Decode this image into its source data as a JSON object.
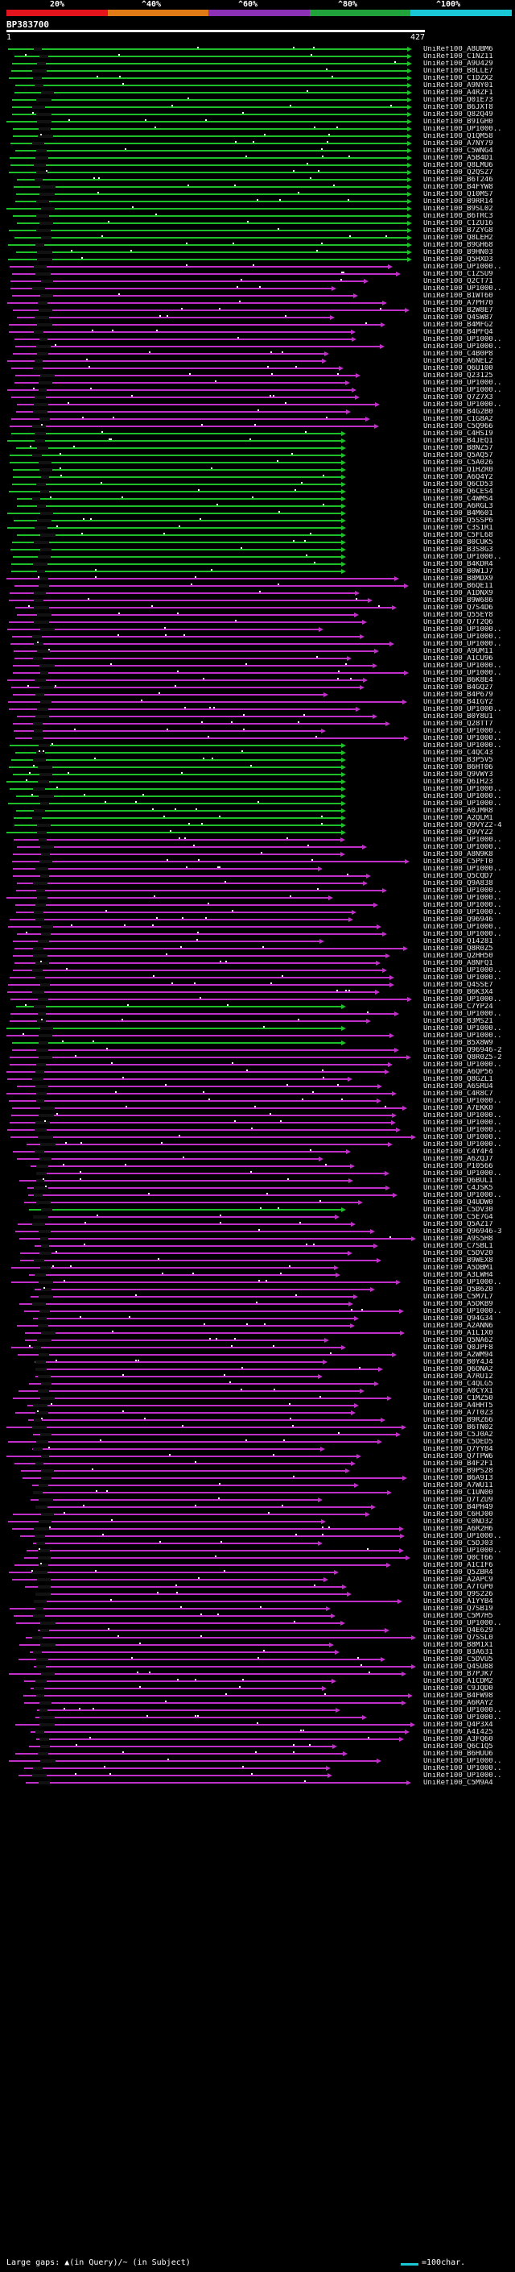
{
  "identity_scale": {
    "labels": [
      "20%",
      "^40%",
      "^60%",
      "^80%",
      "^100%"
    ],
    "colors": [
      "#e3141b",
      "#e07a16",
      "#8c30b6",
      "#22a23b",
      "#19c7d6"
    ]
  },
  "query": {
    "id": "BP383700",
    "start_label": "1",
    "end_label": "427"
  },
  "footer": {
    "gaps_text": "Large gaps: ▲(in Query)/~ (in Subject)",
    "legend_text": "=100char.",
    "legend_color": "#19c7d6"
  },
  "colors": {
    "green": "#1fbf2a",
    "magenta": "#c030c8",
    "dark": "#111111",
    "label": "#e8e8e8"
  },
  "hits": [
    "UniRef100_A8UBM6",
    "UniRef100_C1NZ11",
    "UniRef100_A9U429",
    "UniRef100_B8LLE7",
    "UniRef100_C1DZX2",
    "UniRef100_A9NY01",
    "UniRef100_A4RZF1",
    "UniRef100_Q01E73",
    "UniRef100_B6JXT8",
    "UniRef100_Q82Q49",
    "UniRef100_B9IGH0",
    "UniRef100_UP1000..",
    "UniRef100_Q1QM58",
    "UniRef100_A7NY79",
    "UniRef100_C5WNG4",
    "UniRef100_A5B4D1",
    "UniRef100_Q8LMU6",
    "UniRef100_Q2QSZ7",
    "UniRef100_B6T246",
    "UniRef100_B4FYW8",
    "UniRef100_Q10MS7",
    "UniRef100_B9RR14",
    "UniRef100_B9SL02",
    "UniRef100_B6TRC3",
    "UniRef100_C1ZU16",
    "UniRef100_B7ZYG8",
    "UniRef100_Q8LEH2",
    "UniRef100_B9GH68",
    "UniRef100_B9HN03",
    "UniRef100_Q5HXD3",
    "UniRef100_UP1000..",
    "UniRef100_C1ZSU9",
    "UniRef100_Q2CT71",
    "UniRef100_UP1000..",
    "UniRef100_B1WT60",
    "UniRef100_A7PH70",
    "UniRef100_B2W8E7",
    "UniRef100_Q4SW87",
    "UniRef100_B4MFG2",
    "UniRef100_B4PFQ4",
    "UniRef100_UP1000..",
    "UniRef100_UP1000..",
    "UniRef100_C4B0P8",
    "UniRef100_A6NEL2",
    "UniRef100_Q6U100",
    "UniRef100_Q23125",
    "UniRef100_UP1000..",
    "UniRef100_UP1000..",
    "UniRef100_Q7Z7X3",
    "UniRef100_UP1000..",
    "UniRef100_B4G2B0",
    "UniRef100_C1G8A2",
    "UniRef100_C5Q966",
    "UniRef100_C4HSI9",
    "UniRef100_B4JEQ1",
    "UniRef100_B8NZ57",
    "UniRef100_Q5AQ57",
    "UniRef100_C5A026",
    "UniRef100_Q1HZR0",
    "UniRef100_A6Q4Y2",
    "UniRef100_Q6CD53",
    "UniRef100_Q6CES4",
    "UniRef100_C4WMS4",
    "UniRef100_A6RGL3",
    "UniRef100_B4M601",
    "UniRef100_Q5SSP6",
    "UniRef100_C3S1R1",
    "UniRef100_C5FL68",
    "UniRef100_B0CUK5",
    "UniRef100_B3S8G3",
    "UniRef100_UP1000..",
    "UniRef100_B4KDR4",
    "UniRef100_B0W1J7",
    "UniRef100_B8MDX9",
    "UniRef100_B6QE11",
    "UniRef100_A1DNX9",
    "UniRef100_B9W686",
    "UniRef100_Q7S4D6",
    "UniRef100_Q55EY8",
    "UniRef100_Q7T2Q6",
    "UniRef100_UP1000..",
    "UniRef100_UP1000..",
    "UniRef100_UP1000..",
    "UniRef100_A9UM11",
    "UniRef100_A1CU96",
    "UniRef100_UP1000..",
    "UniRef100_UP1000..",
    "UniRef100_B6K8E4",
    "UniRef100_B4GQ27",
    "UniRef100_B4P679",
    "UniRef100_B4IGY2",
    "UniRef100_UP1000..",
    "UniRef100_B0Y8U1",
    "UniRef100_Q28TT7",
    "UniRef100_UP1000..",
    "UniRef100_UP1000..",
    "UniRef100_UP1000..",
    "UniRef100_C4QC43",
    "UniRef100_B3P5V5",
    "UniRef100_B6HT06",
    "UniRef100_Q9VWY3",
    "UniRef100_Q6IH23",
    "UniRef100_UP1000..",
    "UniRef100_UP1000..",
    "UniRef100_UP1000..",
    "UniRef100_A0JMR8",
    "UniRef100_A2QLM1",
    "UniRef100_Q9VYZ2-4",
    "UniRef100_Q9VYZ2",
    "UniRef100_UP1000..",
    "UniRef100_UP1000..",
    "UniRef100_A8N9K8",
    "UniRef100_C5PFT0",
    "UniRef100_UP1000..",
    "UniRef100_Q5CQD7",
    "UniRef100_Q9A838",
    "UniRef100_UP1000..",
    "UniRef100_UP1000..",
    "UniRef100_UP1000..",
    "UniRef100_UP1000..",
    "UniRef100_Q96946",
    "UniRef100_UP1000..",
    "UniRef100_UP1000..",
    "UniRef100_Q14281",
    "UniRef100_Q8R0Z5",
    "UniRef100_Q2HH50",
    "UniRef100_A8NFQ1",
    "UniRef100_UP1000..",
    "UniRef100_UP1000..",
    "UniRef100_Q4SSE7",
    "UniRef100_B6K3X4",
    "UniRef100_UP1000..",
    "UniRef100_C7YP24",
    "UniRef100_UP1000..",
    "UniRef100_B3MS21",
    "UniRef100_UP1000..",
    "UniRef100_UP1000..",
    "UniRef100_B5X8W9",
    "UniRef100_Q96946-2",
    "UniRef100_Q8R0Z5-2",
    "UniRef100_UP1000..",
    "UniRef100_A6QP56",
    "UniRef100_Q8GZL1",
    "UniRef100_A6SRU4",
    "UniRef100_C4R8C7",
    "UniRef100_UP1000..",
    "UniRef100_A7EKK0",
    "UniRef100_UP1000..",
    "UniRef100_UP1000..",
    "UniRef100_UP1000..",
    "UniRef100_UP1000..",
    "UniRef100_UP1000..",
    "UniRef100_C4Y4F4",
    "UniRef100_A6ZQJ7",
    "UniRef100_P10566",
    "UniRef100_UP1000..",
    "UniRef100_Q6BUL1",
    "UniRef100_C4JSK5",
    "UniRef100_UP1000..",
    "UniRef100_Q4UDW0",
    "UniRef100_C5DV30",
    "UniRef100_C5E7G4",
    "UniRef100_Q5AZ17",
    "UniRef100_Q96946-3",
    "UniRef100_A9S5H8",
    "UniRef100_C7SBL1",
    "UniRef100_C5DV20",
    "UniRef100_B9WEX8",
    "UniRef100_A5DBM1",
    "UniRef100_A3LWH4",
    "UniRef100_UP1000..",
    "UniRef100_Q5B6Z0",
    "UniRef100_C5M7L7",
    "UniRef100_A5DKB9",
    "UniRef100_UP1000..",
    "UniRef100_Q94G34",
    "UniRef100_A2ANN6",
    "UniRef100_A1L1X0",
    "UniRef100_Q5NA62",
    "UniRef100_Q0JPF8",
    "UniRef100_A2WM94",
    "UniRef100_B0Y4J4",
    "UniRef100_Q6ONA2",
    "UniRef100_A7RU12",
    "UniRef100_C4QLG5",
    "UniRef100_A0CYX1",
    "UniRef100_C1MZ50",
    "UniRef100_A4HHT5",
    "UniRef100_A7T0Z3",
    "UniRef100_B9RZ66",
    "UniRef100_B6TN02",
    "UniRef100_C5J0A2",
    "UniRef100_C5DED5",
    "UniRef100_Q7YY84",
    "UniRef100_Q7TPW6",
    "UniRef100_B4F2F1",
    "UniRef100_B9PS28",
    "UniRef100_B6A9I3",
    "UniRef100_A7WU11",
    "UniRef100_C1UN00",
    "UniRef100_Q7TZU9",
    "UniRef100_B4PH49",
    "UniRef100_C6HJ00",
    "UniRef100_C0ND32",
    "UniRef100_A6R2H6",
    "UniRef100_UP1000..",
    "UniRef100_C5DJ03",
    "UniRef100_UP1000..",
    "UniRef100_Q0CT66",
    "UniRef100_A1CIF6",
    "UniRef100_Q5ZBR4",
    "UniRef100_A2APC9",
    "UniRef100_A7TGP0",
    "UniRef100_Q9S226",
    "UniRef100_A1YYB4",
    "UniRef100_Q7SB19",
    "UniRef100_C5M7H5",
    "UniRef100_UP1000..",
    "UniRef100_Q4E629",
    "UniRef100_Q7SSL0",
    "UniRef100_B8M1X1",
    "UniRef100_B3A631",
    "UniRef100_C5DVU5",
    "UniRef100_Q4SU88",
    "UniRef100_B7PJK7",
    "UniRef100_A1CDM2",
    "UniRef100_C9JQD0",
    "UniRef100_B4FW98",
    "UniRef100_A6RAY2",
    "UniRef100_UP1000..",
    "UniRef100_UP1000..",
    "UniRef100_Q4P3X4",
    "UniRef100_A4I425",
    "UniRef100_A3FQ60",
    "UniRef100_Q6C1Q5",
    "UniRef100_B6HUU6",
    "UniRef100_UP1000..",
    "UniRef100_UP1000..",
    "UniRef100_UP1000..",
    "UniRef100_C5M9A4"
  ]
}
